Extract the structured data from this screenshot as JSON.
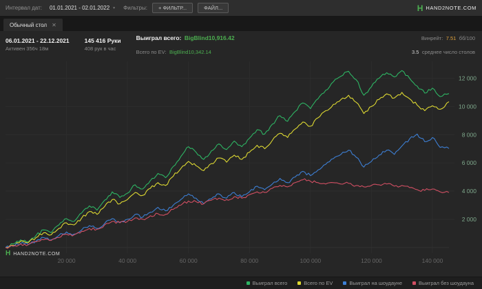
{
  "topbar": {
    "date_interval_label": "Интервал дат:",
    "date_range": "01.01.2021 - 02.01.2022",
    "filters_label": "Фильтры:",
    "plus_icon": "+",
    "filter_button": "ФИЛЬТР...",
    "file_button": "ФАЙЛ..."
  },
  "brand": {
    "logo_letter": "H",
    "text": "HAND2NOTE.COM"
  },
  "tab": {
    "label": "Обычный стол",
    "close_icon": "✕"
  },
  "stats": {
    "date_range": "06.01.2021 - 22.12.2021",
    "active_time": "Активен 356ч 18м",
    "hands": "145 416 Руки",
    "hands_per_hour": "408 рук в час",
    "won_label": "Выиграл всего:",
    "won_value": "BigBlind10,916.42",
    "ev_label": "Всего по EV:",
    "ev_value": "BigBlind10,342.14",
    "winrate_label": "Винрейт:",
    "winrate_value": "7.51",
    "winrate_unit": "бб/100",
    "avg_tables_value": "3.5",
    "avg_tables_label": "среднее число столов"
  },
  "watermark": {
    "logo_letter": "H",
    "text": "HAND2NOTE.COM"
  },
  "chart_data": {
    "type": "line",
    "title": "Winnings graph in big blinds vs hands played",
    "xlabel": "hands",
    "ylabel": "big blinds",
    "xlim": [
      0,
      145416
    ],
    "ylim": [
      -400,
      13200
    ],
    "x_step": 2500,
    "x_ticks": [
      20000,
      40000,
      60000,
      80000,
      100000,
      120000,
      140000
    ],
    "x_tick_labels": [
      "20 000",
      "40 000",
      "60 000",
      "80 000",
      "100 000",
      "120 000",
      "140 000"
    ],
    "y_ticks": [
      2000,
      4000,
      6000,
      8000,
      10000,
      12000
    ],
    "y_tick_labels": [
      "2 000",
      "4 000",
      "6 000",
      "8 000",
      "10 000",
      "12 000"
    ],
    "grid": true,
    "grid_color": "#2d2d2d",
    "zero_line_color": "#323232",
    "x_tick_color": "#666666",
    "y_tick_color": "#7fa98c",
    "background": "#262626",
    "legend_position": "bottom-right",
    "series": [
      {
        "name": "Выиграл всего",
        "color": "#2eb564",
        "values": [
          0,
          250,
          550,
          400,
          850,
          1250,
          1050,
          1600,
          2050,
          1850,
          2450,
          2950,
          2650,
          3350,
          3950,
          3550,
          3850,
          4450,
          4150,
          4750,
          5250,
          4950,
          5750,
          6450,
          7150,
          6750,
          6250,
          6850,
          7350,
          6950,
          7550,
          7150,
          7750,
          8350,
          8050,
          8750,
          9350,
          8950,
          9650,
          10250,
          9850,
          10550,
          11150,
          11750,
          12150,
          12500,
          11900,
          10800,
          11400,
          12000,
          12400,
          12100,
          12550,
          12000,
          11450,
          10950,
          11300,
          10700,
          10916.42
        ]
      },
      {
        "name": "Всего по EV",
        "color": "#ddd832",
        "values": [
          0,
          150,
          450,
          350,
          700,
          1050,
          900,
          1350,
          1750,
          1600,
          2100,
          2550,
          2350,
          2900,
          3400,
          3100,
          3400,
          3900,
          3700,
          4200,
          4600,
          4400,
          5050,
          5600,
          6100,
          5800,
          5450,
          5950,
          6350,
          6050,
          6550,
          6250,
          6750,
          7250,
          7000,
          7600,
          8100,
          7800,
          8400,
          8900,
          8600,
          9200,
          9700,
          10150,
          10500,
          10800,
          10300,
          9500,
          10000,
          10500,
          10900,
          10600,
          11000,
          10550,
          10100,
          9700,
          10050,
          9800,
          10342.14
        ]
      },
      {
        "name": "Выиграл на шоудауне",
        "color": "#3d7fd4",
        "values": [
          0,
          100,
          300,
          200,
          450,
          700,
          550,
          850,
          1100,
          950,
          1250,
          1550,
          1350,
          1700,
          2050,
          1800,
          2000,
          2350,
          2150,
          2500,
          2850,
          2600,
          3000,
          3400,
          3800,
          3500,
          3100,
          3450,
          3800,
          3500,
          3900,
          3600,
          3950,
          4350,
          4100,
          4500,
          4900,
          4600,
          5000,
          5400,
          5100,
          5500,
          5900,
          6300,
          6600,
          6900,
          6400,
          5700,
          6100,
          6550,
          6900,
          6600,
          7200,
          7700,
          8050,
          7500,
          7800,
          7100,
          7020
        ]
      },
      {
        "name": "Выиграл без шоудауна",
        "color": "#d14f63",
        "values": [
          0,
          100,
          250,
          200,
          400,
          550,
          500,
          700,
          950,
          900,
          1150,
          1350,
          1300,
          1600,
          1850,
          1750,
          1850,
          2100,
          2000,
          2250,
          2400,
          2350,
          2700,
          3000,
          3300,
          3250,
          3100,
          3350,
          3500,
          3400,
          3600,
          3500,
          3750,
          3950,
          3900,
          4200,
          4400,
          4300,
          4600,
          4800,
          4700,
          4600,
          4500,
          4600,
          4500,
          4550,
          4400,
          4300,
          4400,
          4450,
          4500,
          4350,
          4400,
          4250,
          4100,
          4050,
          4150,
          3950,
          3896
        ]
      }
    ]
  }
}
